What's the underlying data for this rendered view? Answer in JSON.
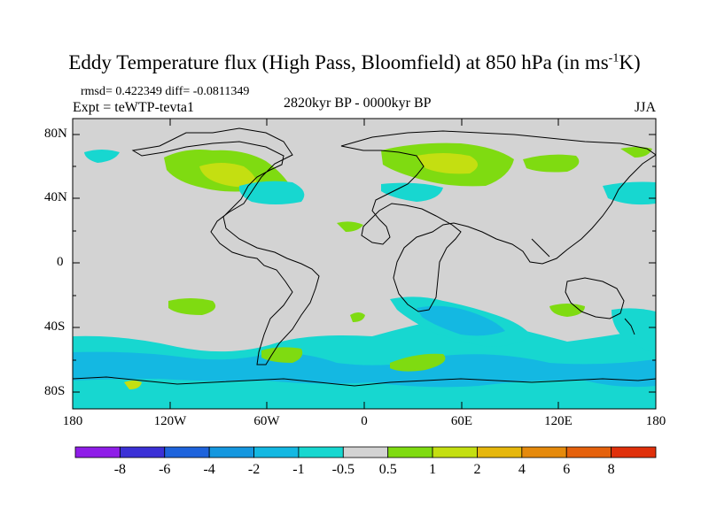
{
  "header": {
    "title_main": "Eddy Temperature flux (High Pass, Bloomfield) at 850 hPa (in ms",
    "title_sup": "-1",
    "title_end": "K)",
    "stats": "rmsd= 0.422349 diff= -0.0811349",
    "experiment": "Expt = teWTP-tevta1",
    "period": "2820kyr BP - 0000kyr BP",
    "season": "JJA"
  },
  "axes": {
    "lat_labels": [
      "80N",
      "40N",
      "0",
      "40S",
      "80S"
    ],
    "lon_labels": [
      "180",
      "120W",
      "60W",
      "0",
      "60E",
      "120E",
      "180"
    ]
  },
  "colorbar": {
    "labels": [
      "-8",
      "-6",
      "-4",
      "-2",
      "-1",
      "-0.5",
      "0.5",
      "1",
      "2",
      "4",
      "6",
      "8"
    ],
    "colors": [
      "#8f1de8",
      "#3b30d6",
      "#1e63dc",
      "#1597df",
      "#14b8e2",
      "#17d7d0",
      "#d3d3d3",
      "#7fdb11",
      "#c4df11",
      "#e6b70d",
      "#e58a0c",
      "#e5610c",
      "#e0300b"
    ]
  },
  "map": {
    "background_color": "#d3d3d3",
    "low_band_color": "#17d7d0",
    "mid_low_color": "#14b8e2",
    "high_band_color": "#7fdb11",
    "mid_high_color": "#c4df11"
  }
}
